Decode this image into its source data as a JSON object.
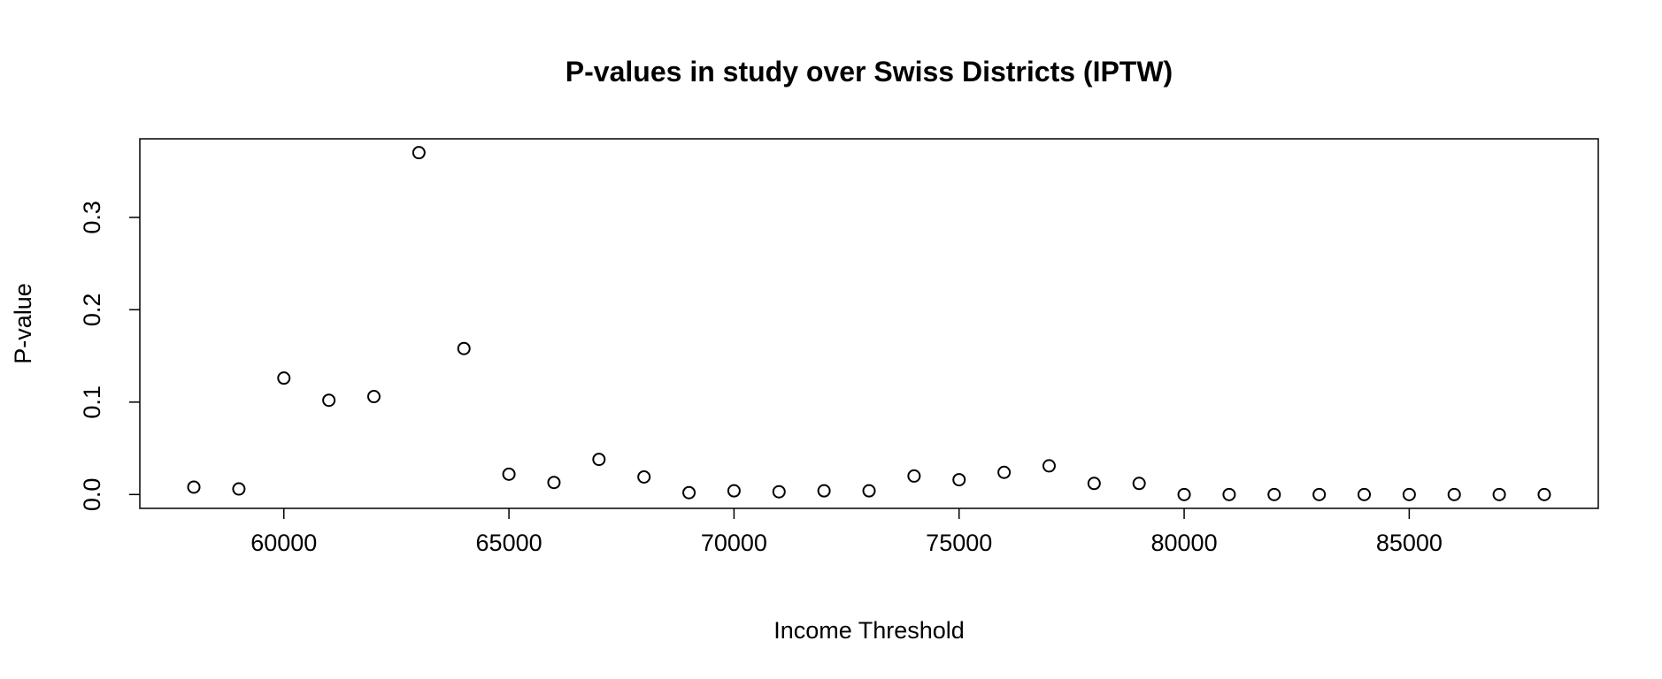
{
  "chart_data": {
    "type": "scatter",
    "title": "P-values in study over Swiss Districts (IPTW)",
    "xlabel": "Income Threshold",
    "ylabel": "P-value",
    "xlim": [
      56800,
      89200
    ],
    "ylim": [
      -0.015,
      0.385
    ],
    "x_ticks": [
      60000,
      65000,
      70000,
      75000,
      80000,
      85000
    ],
    "x_tick_labels": [
      "60000",
      "65000",
      "70000",
      "75000",
      "80000",
      "85000"
    ],
    "y_ticks": [
      0.0,
      0.1,
      0.2,
      0.3
    ],
    "y_tick_labels": [
      "0.0",
      "0.1",
      "0.2",
      "0.3"
    ],
    "grid": false,
    "marker": "open-circle",
    "series": [
      {
        "x": [
          58000,
          59000,
          60000,
          61000,
          62000,
          63000,
          64000,
          65000,
          66000,
          67000,
          68000,
          69000,
          70000,
          71000,
          72000,
          73000,
          74000,
          75000,
          76000,
          77000,
          78000,
          79000,
          80000,
          81000,
          82000,
          83000,
          84000,
          85000,
          86000,
          87000,
          88000
        ],
        "y": [
          0.008,
          0.006,
          0.126,
          0.102,
          0.106,
          0.37,
          0.158,
          0.022,
          0.013,
          0.038,
          0.019,
          0.002,
          0.004,
          0.003,
          0.004,
          0.004,
          0.02,
          0.016,
          0.024,
          0.031,
          0.012,
          0.012,
          0.0,
          0.0,
          0.0,
          0.0,
          0.0,
          0.0,
          0.0,
          0.0,
          0.0
        ]
      }
    ]
  }
}
